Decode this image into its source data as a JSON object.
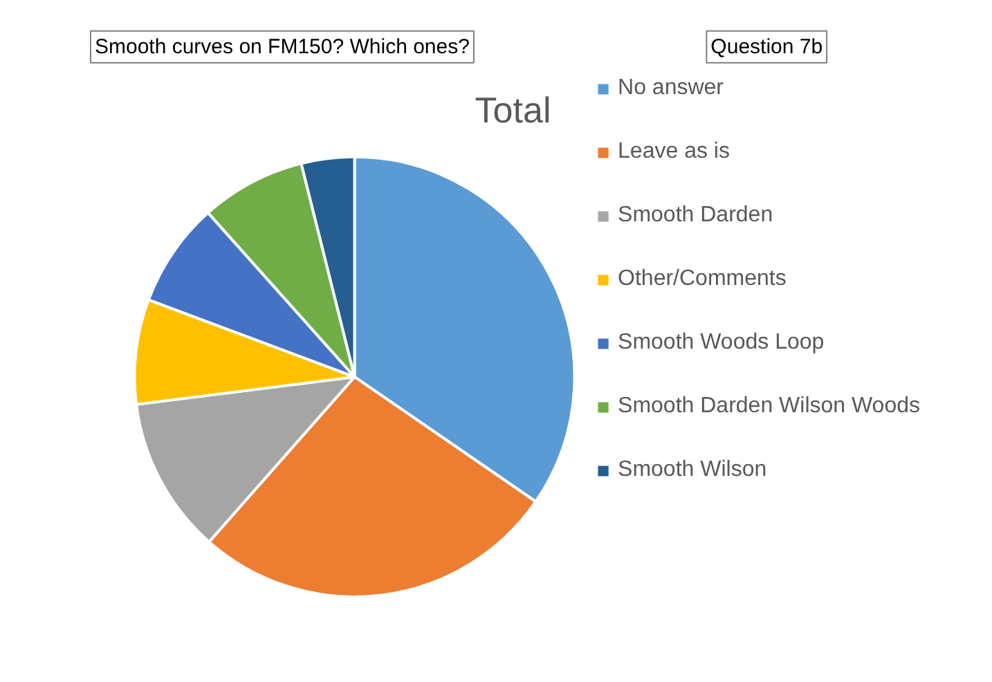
{
  "chart_data": {
    "type": "pie",
    "title": "Total",
    "categories": [
      "No answer",
      "Leave as is",
      "Smooth Darden",
      "Other/Comments",
      "Smooth Woods Loop",
      "Smooth Darden Wilson Woods",
      "Smooth Wilson"
    ],
    "values": [
      34.6,
      26.9,
      11.5,
      7.7,
      7.7,
      7.7,
      3.9
    ],
    "colors": [
      "#5b9bd5",
      "#ed7d31",
      "#a5a5a5",
      "#ffc000",
      "#4472c4",
      "#70ad47",
      "#255e91"
    ],
    "legend": "right",
    "annotations": [
      "Smooth curves on FM150? Which ones?",
      "Question 7b"
    ]
  }
}
